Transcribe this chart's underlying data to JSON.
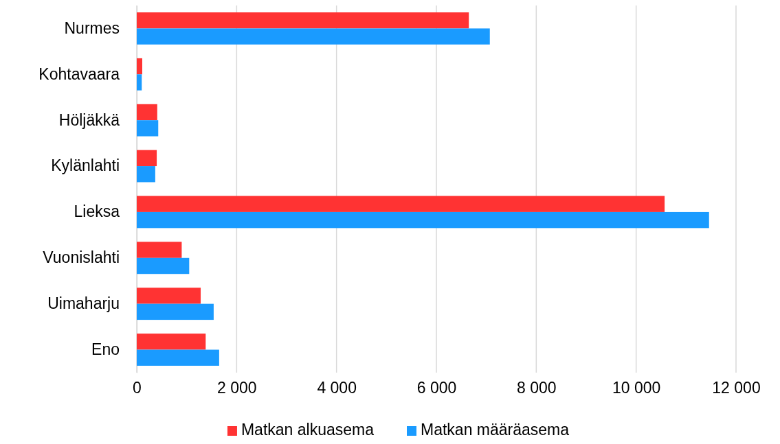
{
  "chart_data": {
    "type": "bar",
    "orientation": "horizontal",
    "categories": [
      "Nurmes",
      "Kohtavaara",
      "Höljäkkä",
      "Kylänlahti",
      "Lieksa",
      "Vuonislahti",
      "Uimaharju",
      "Eno"
    ],
    "series": [
      {
        "name": "Matkan alkuasema",
        "color": "#ff3333",
        "values": [
          6650,
          110,
          410,
          400,
          10570,
          900,
          1280,
          1380
        ]
      },
      {
        "name": "Matkan määräasema",
        "color": "#1a9bff",
        "values": [
          7070,
          100,
          430,
          370,
          11460,
          1050,
          1540,
          1650
        ]
      }
    ],
    "xlim": [
      0,
      12000
    ],
    "xticks": [
      0,
      {
        "value": 2000,
        "label": "2 000"
      },
      {
        "value": 4000,
        "label": "4 000"
      },
      {
        "value": 6000,
        "label": "6 000"
      },
      {
        "value": 8000,
        "label": "8 000"
      },
      {
        "value": 10000,
        "label": "10 000"
      },
      {
        "value": 12000,
        "label": "12 000"
      }
    ],
    "grid": "x",
    "legend": "bottom"
  }
}
